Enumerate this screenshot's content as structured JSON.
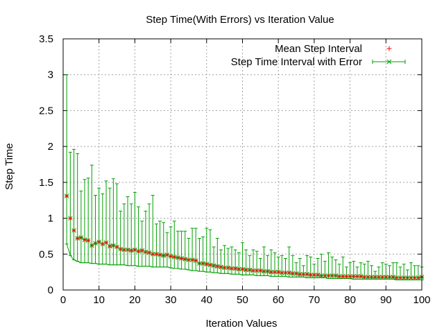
{
  "chart_data": {
    "type": "scatter",
    "title": "Step Time(With Errors) vs Iteration Value",
    "xlabel": "Iteration Values",
    "ylabel": "Step Time",
    "xlim": [
      0,
      100
    ],
    "ylim": [
      0,
      3.5
    ],
    "xticks": [
      "0",
      "10",
      "20",
      "30",
      "40",
      "50",
      "60",
      "70",
      "80",
      "90",
      "100"
    ],
    "yticks": [
      "0",
      "0.5",
      "1",
      "1.5",
      "2",
      "2.5",
      "3",
      "3.5"
    ],
    "grid": true,
    "legend_position": "top-right",
    "legend": [
      {
        "label": "Mean Step Interval",
        "color": "#ff0000",
        "marker": "plus"
      },
      {
        "label": "Step Time Interval with Error",
        "color": "#00a000",
        "marker": "cross-errorbar"
      }
    ],
    "colors": {
      "mean": "#ff0000",
      "error": "#00a000",
      "grid": "#a0a0a0"
    },
    "x": [
      1,
      2,
      3,
      4,
      5,
      6,
      7,
      8,
      9,
      10,
      11,
      12,
      13,
      14,
      15,
      16,
      17,
      18,
      19,
      20,
      21,
      22,
      23,
      24,
      25,
      26,
      27,
      28,
      29,
      30,
      31,
      32,
      33,
      34,
      35,
      36,
      37,
      38,
      39,
      40,
      41,
      42,
      43,
      44,
      45,
      46,
      47,
      48,
      49,
      50,
      51,
      52,
      53,
      54,
      55,
      56,
      57,
      58,
      59,
      60,
      61,
      62,
      63,
      64,
      65,
      66,
      67,
      68,
      69,
      70,
      71,
      72,
      73,
      74,
      75,
      76,
      77,
      78,
      79,
      80,
      81,
      82,
      83,
      84,
      85,
      86,
      87,
      88,
      89,
      90,
      91,
      92,
      93,
      94,
      95,
      96,
      97,
      98,
      99,
      100
    ],
    "mean": [
      1.31,
      1.0,
      0.83,
      0.72,
      0.73,
      0.7,
      0.69,
      0.62,
      0.65,
      0.67,
      0.64,
      0.66,
      0.61,
      0.62,
      0.6,
      0.57,
      0.56,
      0.56,
      0.55,
      0.56,
      0.54,
      0.55,
      0.53,
      0.52,
      0.5,
      0.5,
      0.49,
      0.48,
      0.49,
      0.47,
      0.46,
      0.45,
      0.44,
      0.43,
      0.42,
      0.42,
      0.41,
      0.37,
      0.37,
      0.36,
      0.35,
      0.34,
      0.33,
      0.32,
      0.31,
      0.31,
      0.3,
      0.3,
      0.29,
      0.29,
      0.28,
      0.28,
      0.27,
      0.27,
      0.27,
      0.26,
      0.26,
      0.25,
      0.25,
      0.25,
      0.24,
      0.24,
      0.24,
      0.23,
      0.23,
      0.22,
      0.22,
      0.22,
      0.21,
      0.21,
      0.21,
      0.2,
      0.2,
      0.2,
      0.2,
      0.2,
      0.19,
      0.19,
      0.19,
      0.19,
      0.19,
      0.19,
      0.19,
      0.18,
      0.18,
      0.18,
      0.18,
      0.18,
      0.18,
      0.18,
      0.18,
      0.18,
      0.17,
      0.17,
      0.17,
      0.17,
      0.17,
      0.17,
      0.17,
      0.18
    ],
    "upper": [
      3.0,
      1.92,
      1.96,
      1.9,
      1.38,
      1.54,
      1.56,
      1.74,
      1.32,
      1.42,
      1.34,
      1.52,
      1.42,
      1.55,
      1.48,
      1.1,
      1.2,
      1.3,
      1.2,
      1.36,
      1.16,
      0.96,
      1.1,
      1.2,
      1.32,
      0.92,
      0.96,
      0.94,
      0.8,
      0.88,
      0.96,
      0.82,
      0.82,
      0.82,
      0.72,
      0.86,
      0.86,
      0.72,
      0.74,
      0.86,
      0.84,
      0.6,
      0.72,
      0.56,
      0.62,
      0.58,
      0.6,
      0.56,
      0.52,
      0.66,
      0.56,
      0.48,
      0.56,
      0.54,
      0.44,
      0.6,
      0.48,
      0.56,
      0.52,
      0.46,
      0.48,
      0.44,
      0.6,
      0.48,
      0.38,
      0.44,
      0.34,
      0.48,
      0.46,
      0.36,
      0.44,
      0.5,
      0.4,
      0.52,
      0.46,
      0.42,
      0.36,
      0.46,
      0.32,
      0.38,
      0.4,
      0.32,
      0.38,
      0.36,
      0.4,
      0.34,
      0.26,
      0.32,
      0.38,
      0.36,
      0.34,
      0.38,
      0.38,
      0.32,
      0.36,
      0.28,
      0.38,
      0.34,
      0.34,
      0.32
    ],
    "lower": [
      0.64,
      0.48,
      0.42,
      0.4,
      0.38,
      0.38,
      0.38,
      0.37,
      0.37,
      0.36,
      0.36,
      0.36,
      0.35,
      0.35,
      0.35,
      0.35,
      0.35,
      0.34,
      0.34,
      0.34,
      0.33,
      0.33,
      0.33,
      0.33,
      0.32,
      0.32,
      0.32,
      0.32,
      0.32,
      0.31,
      0.3,
      0.3,
      0.29,
      0.29,
      0.28,
      0.27,
      0.27,
      0.26,
      0.26,
      0.25,
      0.25,
      0.24,
      0.24,
      0.23,
      0.23,
      0.23,
      0.22,
      0.22,
      0.22,
      0.21,
      0.21,
      0.21,
      0.21,
      0.2,
      0.2,
      0.2,
      0.2,
      0.19,
      0.19,
      0.19,
      0.19,
      0.19,
      0.18,
      0.18,
      0.18,
      0.18,
      0.18,
      0.17,
      0.17,
      0.17,
      0.17,
      0.17,
      0.17,
      0.16,
      0.16,
      0.16,
      0.16,
      0.16,
      0.16,
      0.16,
      0.15,
      0.15,
      0.15,
      0.15,
      0.15,
      0.15,
      0.15,
      0.15,
      0.15,
      0.15,
      0.15,
      0.15,
      0.14,
      0.14,
      0.14,
      0.14,
      0.14,
      0.14,
      0.14,
      0.14
    ]
  }
}
